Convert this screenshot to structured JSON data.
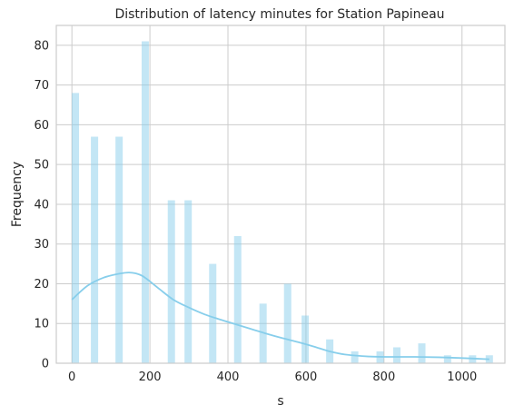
{
  "chart_data": {
    "type": "bar",
    "title": "Distribution of latency minutes for Station Papineau",
    "xlabel": "s",
    "ylabel": "Frequency",
    "xlim": [
      -40,
      1110
    ],
    "ylim": [
      0,
      85
    ],
    "xticks": [
      0,
      200,
      400,
      600,
      800,
      1000
    ],
    "yticks": [
      0,
      10,
      20,
      30,
      40,
      50,
      60,
      70,
      80
    ],
    "grid": true,
    "bars": [
      {
        "x": 9,
        "value": 68
      },
      {
        "x": 58,
        "value": 57
      },
      {
        "x": 121,
        "value": 57
      },
      {
        "x": 188,
        "value": 81
      },
      {
        "x": 255,
        "value": 41
      },
      {
        "x": 298,
        "value": 41
      },
      {
        "x": 361,
        "value": 25
      },
      {
        "x": 425,
        "value": 32
      },
      {
        "x": 490,
        "value": 15
      },
      {
        "x": 553,
        "value": 20
      },
      {
        "x": 598,
        "value": 12
      },
      {
        "x": 661,
        "value": 6
      },
      {
        "x": 725,
        "value": 3
      },
      {
        "x": 790,
        "value": 3
      },
      {
        "x": 833,
        "value": 4
      },
      {
        "x": 897,
        "value": 5
      },
      {
        "x": 963,
        "value": 2
      },
      {
        "x": 1027,
        "value": 2
      },
      {
        "x": 1070,
        "value": 2
      }
    ],
    "kde": {
      "x": [
        0,
        40,
        80,
        120,
        150,
        180,
        220,
        260,
        300,
        340,
        380,
        420,
        460,
        500,
        540,
        580,
        620,
        660,
        700,
        760,
        820,
        880,
        940,
        1000,
        1070
      ],
      "y": [
        16,
        19.5,
        21.5,
        22.5,
        22.8,
        22,
        19,
        16,
        14,
        12.3,
        11,
        9.8,
        8.6,
        7.4,
        6.3,
        5.3,
        4.2,
        3.0,
        2.2,
        1.7,
        1.6,
        1.6,
        1.5,
        1.3,
        1.0
      ]
    }
  }
}
